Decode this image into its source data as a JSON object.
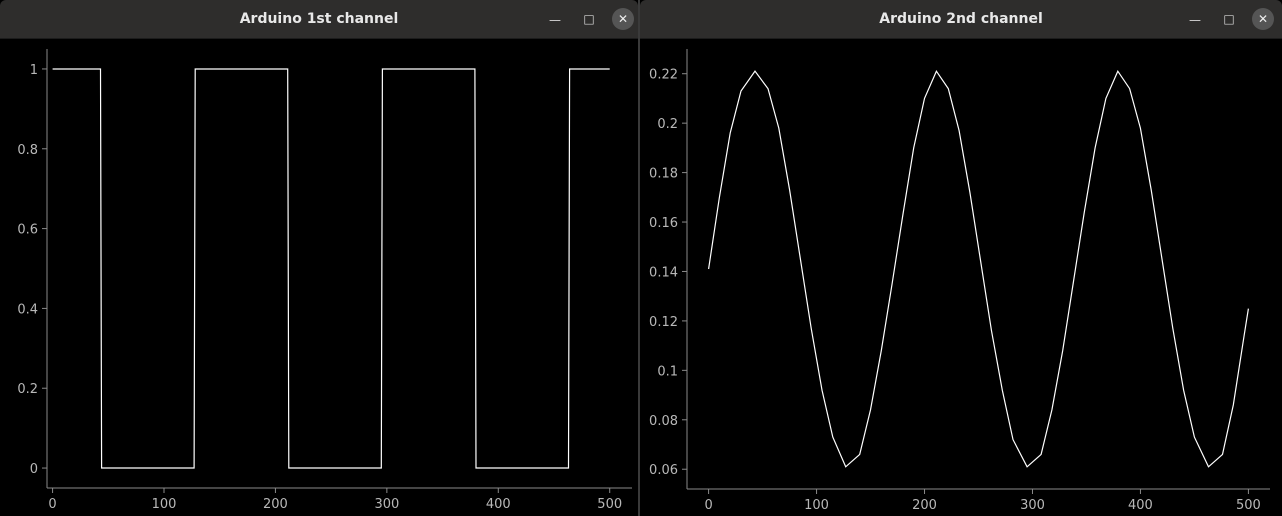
{
  "windows": [
    {
      "title": "Arduino 1st channel",
      "minimize_icon": "minimize-icon",
      "maximize_icon": "maximize-icon",
      "close_icon": "close-icon",
      "chart_data": {
        "type": "line",
        "title": "",
        "xlabel": "",
        "ylabel": "",
        "xlim": [
          -5,
          520
        ],
        "ylim": [
          -0.05,
          1.05
        ],
        "xticks": [
          0,
          100,
          200,
          300,
          400,
          500
        ],
        "yticks": [
          0,
          0.2,
          0.4,
          0.6,
          0.8,
          1
        ],
        "xtick_labels": [
          "0",
          "100",
          "200",
          "300",
          "400",
          "500"
        ],
        "ytick_labels": [
          "0",
          "0.2",
          "0.4",
          "0.6",
          "0.8",
          "1"
        ],
        "grid": false,
        "line_color": "#ffffff",
        "series": [
          {
            "x": [
              0,
              43,
              44,
              127,
              128,
              211,
              212,
              295,
              296,
              379,
              380,
              463,
              464,
              500
            ],
            "y": [
              1,
              1,
              0,
              0,
              1,
              1,
              0,
              0,
              1,
              1,
              0,
              0,
              1,
              1
            ]
          }
        ]
      }
    },
    {
      "title": "Arduino 2nd channel",
      "minimize_icon": "minimize-icon",
      "maximize_icon": "maximize-icon",
      "close_icon": "close-icon",
      "chart_data": {
        "type": "line",
        "title": "",
        "xlabel": "",
        "ylabel": "",
        "xlim": [
          -20,
          520
        ],
        "ylim": [
          0.052,
          0.23
        ],
        "xticks": [
          0,
          100,
          200,
          300,
          400,
          500
        ],
        "yticks": [
          0.06,
          0.08,
          0.1,
          0.12,
          0.14,
          0.16,
          0.18,
          0.2,
          0.22
        ],
        "xtick_labels": [
          "0",
          "100",
          "200",
          "300",
          "400",
          "500"
        ],
        "ytick_labels": [
          "0.06",
          "0.08",
          "0.1",
          "0.12",
          "0.14",
          "0.16",
          "0.18",
          "0.2",
          "0.22"
        ],
        "grid": false,
        "line_color": "#ffffff",
        "series": [
          {
            "x": [
              0,
              10,
              20,
              30,
              43,
              55,
              65,
              75,
              85,
              95,
              105,
              115,
              127,
              140,
              150,
              160,
              170,
              180,
              190,
              200,
              211,
              222,
              232,
              242,
              252,
              262,
              272,
              282,
              295,
              308,
              318,
              328,
              338,
              348,
              358,
              368,
              379,
              390,
              400,
              410,
              420,
              430,
              440,
              450,
              463,
              476,
              486,
              496,
              500
            ],
            "y": [
              0.141,
              0.17,
              0.196,
              0.213,
              0.221,
              0.214,
              0.198,
              0.173,
              0.145,
              0.117,
              0.092,
              0.073,
              0.061,
              0.066,
              0.084,
              0.108,
              0.135,
              0.163,
              0.19,
              0.21,
              0.221,
              0.214,
              0.197,
              0.172,
              0.144,
              0.116,
              0.092,
              0.072,
              0.061,
              0.066,
              0.084,
              0.108,
              0.136,
              0.164,
              0.19,
              0.21,
              0.221,
              0.214,
              0.198,
              0.173,
              0.145,
              0.117,
              0.092,
              0.073,
              0.061,
              0.066,
              0.086,
              0.114,
              0.125
            ]
          }
        ]
      }
    }
  ]
}
